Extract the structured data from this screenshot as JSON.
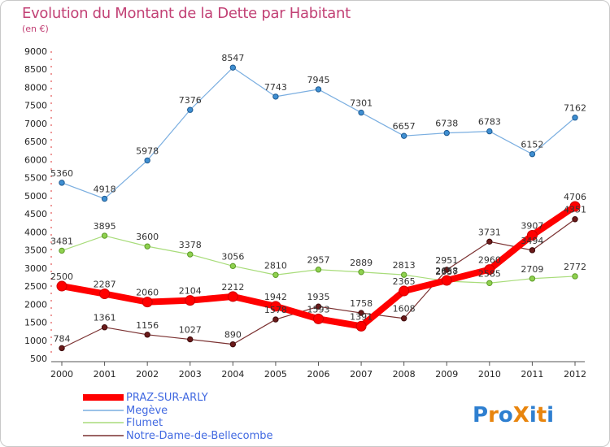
{
  "chart_data": {
    "type": "line",
    "title": "Evolution du Montant de la Dette par Habitant",
    "subtitle": "(en €)",
    "x": [
      "2000",
      "2001",
      "2002",
      "2003",
      "2004",
      "2005",
      "2006",
      "2007",
      "2008",
      "2009",
      "2010",
      "2011",
      "2012"
    ],
    "ylim": [
      500,
      9000
    ],
    "yticks": [
      500,
      1000,
      1500,
      2000,
      2500,
      3000,
      3500,
      4000,
      4500,
      5000,
      5500,
      6000,
      6500,
      7000,
      7500,
      8000,
      8500,
      9000
    ],
    "grid": false,
    "legend_position": "bottom-left",
    "series": [
      {
        "name": "PRAZ-SUR-ARLY",
        "color": "#ff0000",
        "values": [
          2500,
          2287,
          2060,
          2104,
          2212,
          1942,
          1593,
          1391,
          2365,
          2658,
          2960,
          3907,
          4706
        ]
      },
      {
        "name": "Megève",
        "color": "#3f8fd2",
        "values": [
          5360,
          4918,
          5978,
          7376,
          8547,
          7743,
          7945,
          7301,
          6657,
          6738,
          6783,
          6152,
          7162
        ]
      },
      {
        "name": "Flumet",
        "color": "#8fd14f",
        "values": [
          3481,
          3895,
          3600,
          3378,
          3056,
          2810,
          2957,
          2889,
          2813,
          2637,
          2585,
          2709,
          2772
        ]
      },
      {
        "name": "Notre-Dame-de-Bellecombe",
        "color": "#6b1a1a",
        "values": [
          784,
          1361,
          1156,
          1027,
          890,
          1578,
          1935,
          1758,
          1608,
          2951,
          3731,
          3494,
          4351
        ]
      }
    ]
  },
  "logo": {
    "text": "ProXiti"
  }
}
